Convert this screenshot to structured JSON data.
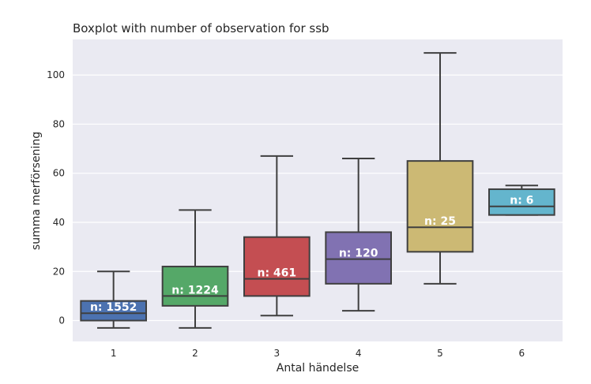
{
  "chart_data": {
    "type": "boxplot",
    "title": "Boxplot with number of observation for ssb",
    "xlabel": "Antal händelse",
    "ylabel": "summa merförsening",
    "categories": [
      "1",
      "2",
      "3",
      "4",
      "5",
      "6"
    ],
    "ylim": [
      -8.5,
      114.5
    ],
    "yticks": [
      0,
      20,
      40,
      60,
      80,
      100
    ],
    "grid": true,
    "boxes": [
      {
        "category": "1",
        "whisker_low": -3,
        "q1": 0,
        "median": 3,
        "q3": 8,
        "whisker_high": 20,
        "color": "#4c72b0",
        "n_label": "n: 1552"
      },
      {
        "category": "2",
        "whisker_low": -3,
        "q1": 6,
        "median": 10,
        "q3": 22,
        "whisker_high": 45,
        "color": "#55a868",
        "n_label": "n: 1224"
      },
      {
        "category": "3",
        "whisker_low": 2,
        "q1": 10,
        "median": 17,
        "q3": 34,
        "whisker_high": 67,
        "color": "#c44e52",
        "n_label": "n: 461"
      },
      {
        "category": "4",
        "whisker_low": 4,
        "q1": 15,
        "median": 25,
        "q3": 36,
        "whisker_high": 66,
        "color": "#8172b2",
        "n_label": "n: 120"
      },
      {
        "category": "5",
        "whisker_low": 15,
        "q1": 28,
        "median": 38,
        "q3": 65,
        "whisker_high": 109,
        "color": "#ccb974",
        "n_label": "n: 25"
      },
      {
        "category": "6",
        "whisker_low": 43,
        "q1": 43,
        "median": 46.5,
        "q3": 53.5,
        "whisker_high": 55,
        "color": "#64b5cd",
        "n_label": "n: 6"
      }
    ],
    "colors": {
      "background": "#eaeaf2",
      "grid": "#ffffff",
      "line": "#3f3f3f"
    }
  }
}
